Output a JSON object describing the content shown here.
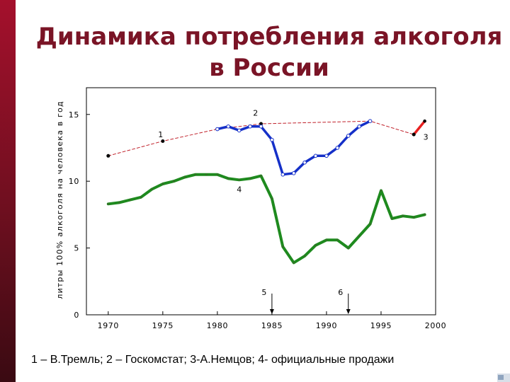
{
  "slide": {
    "title_line1": "Динамика потребления алкоголя",
    "title_line2": "в России",
    "caption": "1 – В.Тремль; 2 – Госкомстат; 3-А.Немцов; 4- официальные продажи"
  },
  "chart_data": {
    "type": "line",
    "title": "",
    "xlabel": "",
    "ylabel": "литры 100% алкоголя на человека в год",
    "xlim": [
      1968,
      2000
    ],
    "ylim": [
      0,
      17
    ],
    "x_ticks": [
      1970,
      1975,
      1980,
      1985,
      1990,
      1995,
      2000
    ],
    "y_ticks": [
      0,
      5,
      10,
      15
    ],
    "grid": false,
    "series": [
      {
        "name": "1",
        "color": "#c0202a",
        "style": "dashed",
        "x": [
          1970,
          1975,
          1980,
          1984,
          1994,
          1998
        ],
        "y": [
          11.9,
          13.0,
          13.9,
          14.3,
          14.5,
          13.5
        ]
      },
      {
        "name": "2",
        "color": "#1530c8",
        "style": "solid",
        "x": [
          1980,
          1981,
          1982,
          1983,
          1984,
          1985,
          1986,
          1987,
          1988,
          1989,
          1990,
          1991,
          1992,
          1993,
          1994
        ],
        "y": [
          13.9,
          14.1,
          13.8,
          14.1,
          14.1,
          13.1,
          10.5,
          10.6,
          11.4,
          11.9,
          11.9,
          12.5,
          13.4,
          14.1,
          14.5
        ]
      },
      {
        "name": "3",
        "color": "#e82020",
        "style": "solid",
        "x": [
          1998,
          1999
        ],
        "y": [
          13.5,
          14.5
        ]
      },
      {
        "name": "4",
        "color": "#1e8a1e",
        "style": "solid",
        "x": [
          1970,
          1971,
          1972,
          1973,
          1974,
          1975,
          1976,
          1977,
          1978,
          1979,
          1980,
          1981,
          1982,
          1983,
          1984,
          1985,
          1986,
          1987,
          1988,
          1989,
          1990,
          1991,
          1992,
          1993,
          1994,
          1995,
          1996,
          1997,
          1998,
          1999
        ],
        "y": [
          8.3,
          8.4,
          8.6,
          8.8,
          9.4,
          9.8,
          10.0,
          10.3,
          10.5,
          10.5,
          10.5,
          10.2,
          10.1,
          10.2,
          10.4,
          8.7,
          5.1,
          3.9,
          4.4,
          5.2,
          5.6,
          5.6,
          5.0,
          5.9,
          6.8,
          9.3,
          7.2,
          7.4,
          7.3,
          7.5
        ]
      }
    ],
    "annotations": [
      {
        "text": "1",
        "x": 1974.8,
        "y": 13.3
      },
      {
        "text": "2",
        "x": 1983.5,
        "y": 14.9
      },
      {
        "text": "3",
        "x": 1999.1,
        "y": 13.1
      },
      {
        "text": "4",
        "x": 1982.0,
        "y": 9.2
      }
    ],
    "arrows": [
      {
        "text": "5",
        "x": 1985.0
      },
      {
        "text": "6",
        "x": 1992.0
      }
    ]
  }
}
